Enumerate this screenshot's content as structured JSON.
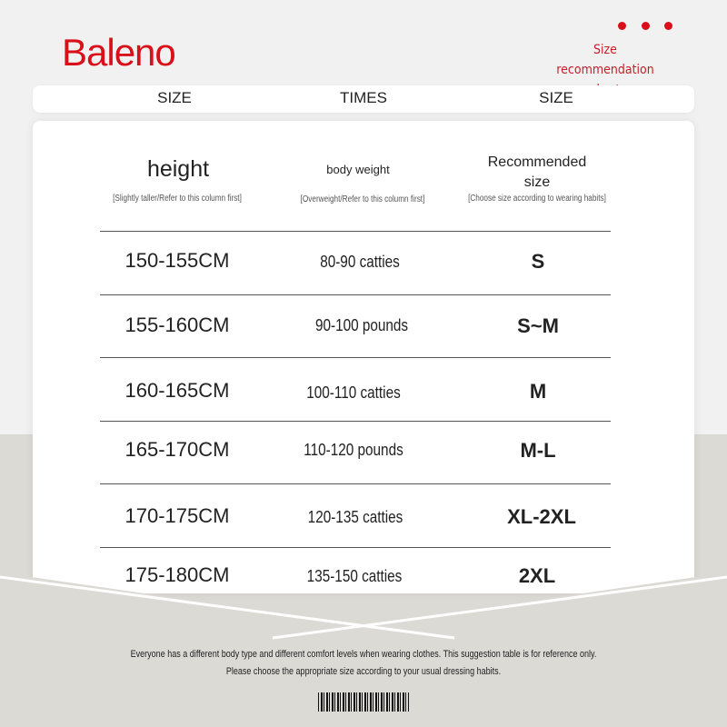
{
  "brand": {
    "logo": "Baleno",
    "title": "Size recommendation chart",
    "accent": "#d90f19"
  },
  "header_bar": {
    "col1": "SIZE",
    "col2": "TIMES",
    "col3": "SIZE"
  },
  "columns": [
    {
      "title": "height",
      "note": "[Slightly taller/Refer to this column first]"
    },
    {
      "title": "body weight",
      "note": "[Overweight/Refer to this column first]"
    },
    {
      "title": "Recommended size",
      "note": "[Choose size according to wearing habits]"
    }
  ],
  "rows": [
    {
      "height": "150-155CM",
      "weight": "80-90 catties",
      "size": "S"
    },
    {
      "height": "155-160CM",
      "weight": "90-100 pounds",
      "size": "S~M"
    },
    {
      "height": "160-165CM",
      "weight": "100-110 catties",
      "size": "M"
    },
    {
      "height": "165-170CM",
      "weight": "110-120 pounds",
      "size": "M-L"
    },
    {
      "height": "170-175CM",
      "weight": "120-135 catties",
      "size": "XL-2XL"
    },
    {
      "height": "175-180CM",
      "weight": "135-150 catties",
      "size": "2XL"
    }
  ],
  "footer": {
    "line1": "Everyone has a different body type and different comfort levels when wearing clothes. This suggestion table is for reference only.",
    "line2": "Please choose the appropriate size according to your usual dressing habits."
  }
}
